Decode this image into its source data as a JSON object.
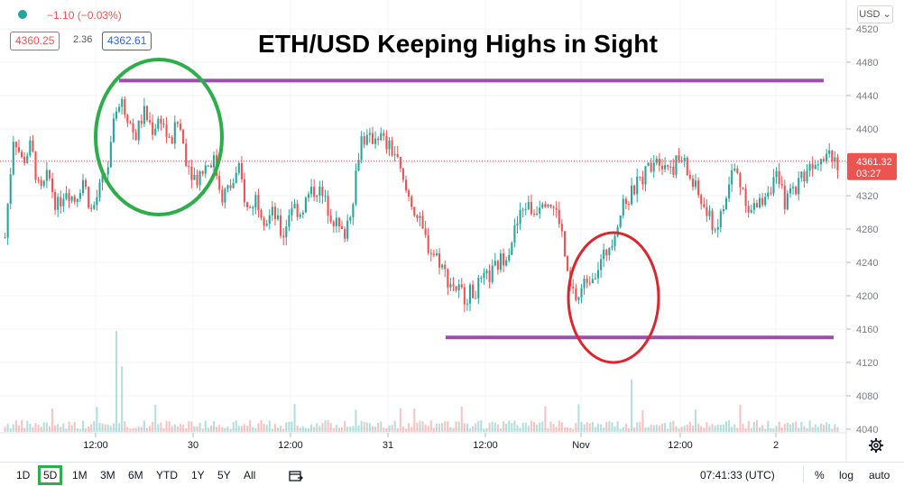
{
  "header": {
    "change": "−1.10 (−0.03%)",
    "bid": "4360.25",
    "spread": "2.36",
    "ask": "4362.61",
    "headline": "ETH/USD Keeping Highs in Sight",
    "currency_button": "USD ⌄"
  },
  "colors": {
    "up": "#26a69a",
    "down": "#ef5350",
    "resistance_support": "#9b4fa8",
    "highlight_green": "#2eae4a",
    "highlight_red": "#e0242c",
    "ask_blue": "#2962ff"
  },
  "toolbar": {
    "ranges": [
      "1D",
      "5D",
      "1M",
      "3M",
      "6M",
      "YTD",
      "1Y",
      "5Y",
      "All"
    ],
    "active_range": "5D",
    "clock": "07:41:33 (UTC)",
    "percent": "%",
    "log": "log",
    "auto": "auto"
  },
  "chart_data": {
    "type": "candlestick",
    "title": "ETH/USD Keeping Highs in Sight",
    "y_ticks": [
      4520,
      4480,
      4440,
      4400,
      4360,
      4320,
      4280,
      4240,
      4200,
      4160,
      4120,
      4080,
      4040
    ],
    "x_ticks": [
      "12:00",
      "30",
      "12:00",
      "31",
      "12:00",
      "Nov",
      "12:00",
      "2"
    ],
    "ylim": [
      4040,
      4520
    ],
    "last_price": "4361.32",
    "countdown": "03:27",
    "resistance": 4458,
    "support": 4150,
    "price_path": [
      [
        0,
        4270
      ],
      [
        1,
        4395
      ],
      [
        2,
        4360
      ],
      [
        3,
        4380
      ],
      [
        4,
        4320
      ],
      [
        5,
        4345
      ],
      [
        6,
        4305
      ],
      [
        7,
        4330
      ],
      [
        8,
        4315
      ],
      [
        9,
        4340
      ],
      [
        10,
        4300
      ],
      [
        11,
        4330
      ],
      [
        12,
        4360
      ],
      [
        13,
        4440
      ],
      [
        14,
        4420
      ],
      [
        15,
        4390
      ],
      [
        16,
        4420
      ],
      [
        17,
        4400
      ],
      [
        18,
        4415
      ],
      [
        19,
        4380
      ],
      [
        20,
        4410
      ],
      [
        21,
        4360
      ],
      [
        22,
        4340
      ],
      [
        23,
        4355
      ],
      [
        24,
        4365
      ],
      [
        25,
        4320
      ],
      [
        26,
        4330
      ],
      [
        27,
        4350
      ],
      [
        28,
        4300
      ],
      [
        29,
        4320
      ],
      [
        30,
        4290
      ],
      [
        31,
        4300
      ],
      [
        32,
        4270
      ],
      [
        33,
        4310
      ],
      [
        34,
        4300
      ],
      [
        35,
        4320
      ],
      [
        36,
        4330
      ],
      [
        37,
        4310
      ],
      [
        38,
        4290
      ],
      [
        39,
        4270
      ],
      [
        40,
        4310
      ],
      [
        41,
        4390
      ],
      [
        42,
        4385
      ],
      [
        43,
        4395
      ],
      [
        44,
        4380
      ],
      [
        45,
        4370
      ],
      [
        46,
        4330
      ],
      [
        47,
        4310
      ],
      [
        48,
        4280
      ],
      [
        49,
        4255
      ],
      [
        50,
        4245
      ],
      [
        51,
        4220
      ],
      [
        52,
        4210
      ],
      [
        53,
        4200
      ],
      [
        54,
        4205
      ],
      [
        55,
        4215
      ],
      [
        56,
        4225
      ],
      [
        57,
        4240
      ],
      [
        58,
        4255
      ],
      [
        59,
        4285
      ],
      [
        60,
        4310
      ],
      [
        61,
        4300
      ],
      [
        62,
        4320
      ],
      [
        63,
        4310
      ],
      [
        64,
        4290
      ],
      [
        65,
        4210
      ],
      [
        66,
        4195
      ],
      [
        67,
        4220
      ],
      [
        68,
        4230
      ],
      [
        69,
        4245
      ],
      [
        70,
        4270
      ],
      [
        71,
        4300
      ],
      [
        72,
        4320
      ],
      [
        73,
        4335
      ],
      [
        74,
        4350
      ],
      [
        75,
        4370
      ],
      [
        76,
        4360
      ],
      [
        77,
        4355
      ],
      [
        78,
        4365
      ],
      [
        79,
        4340
      ],
      [
        80,
        4320
      ],
      [
        81,
        4295
      ],
      [
        82,
        4280
      ],
      [
        83,
        4310
      ],
      [
        84,
        4355
      ],
      [
        85,
        4330
      ],
      [
        86,
        4300
      ],
      [
        87,
        4310
      ],
      [
        88,
        4330
      ],
      [
        89,
        4340
      ],
      [
        90,
        4310
      ],
      [
        91,
        4330
      ],
      [
        92,
        4345
      ],
      [
        93,
        4360
      ],
      [
        94,
        4370
      ],
      [
        95,
        4375
      ],
      [
        96,
        4361
      ]
    ]
  }
}
